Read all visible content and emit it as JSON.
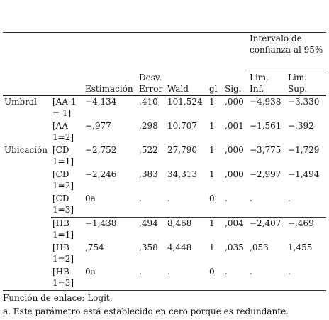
{
  "table": {
    "header": {
      "group": "Intervalo de confianza al 95%",
      "columns": [
        "Estimación",
        "Desv. Error",
        "Wald",
        "gl",
        "Sig.",
        "Lim. Inf.",
        "Lim. Sup."
      ]
    },
    "rows": [
      [
        "Umbral",
        "[AA 1 = 1]",
        "−4,134",
        ",410",
        "101,524",
        "1",
        ",000",
        "−4,938",
        "−3,330"
      ],
      [
        null,
        "[AA 1=2]",
        "−,977",
        ",298",
        "10,707",
        "1",
        ",001",
        "−1,561",
        "−,392"
      ],
      [
        "Ubicación",
        "[CD 1=1]",
        "−2,752",
        ",522",
        "27,790",
        "1",
        ",000",
        "−3,775",
        "−1,729"
      ],
      [
        null,
        "[CD 1=2]",
        "−2,246",
        ",383",
        "34,313",
        "1",
        ",000",
        "−2,997",
        "−1,494"
      ],
      [
        null,
        "[CD 1=3]",
        "0a",
        ".",
        ".",
        "0",
        ".",
        ".",
        "."
      ],
      [
        null,
        "[HB 1=1]",
        "−1,438",
        ",494",
        "8,468",
        "1",
        ",004",
        "−2,407",
        "−,469"
      ],
      [
        null,
        "[HB 1=2]",
        ",754",
        ",358",
        "4,448",
        "1",
        ",035",
        ",053",
        "1,455"
      ],
      [
        null,
        "[HB 1=3]",
        "0a",
        ".",
        ".",
        "0",
        ".",
        ".",
        "."
      ]
    ],
    "footnotes": [
      "Función de enlace: Logit.",
      "a. Este parámetro está establecido en cero porque es redundante."
    ]
  }
}
